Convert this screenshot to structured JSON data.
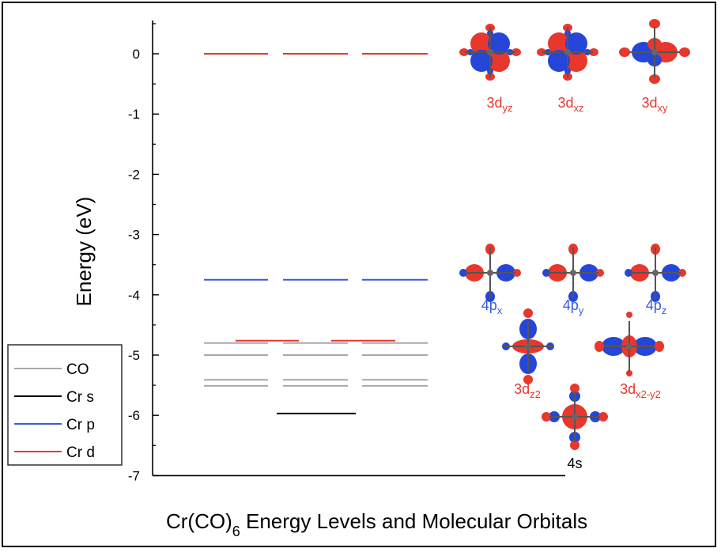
{
  "chart_data": {
    "type": "energy-level diagram",
    "title": "Cr(CO)6 Energy Levels and Molecular Orbitals",
    "title_parts": {
      "pre": "Cr(CO)",
      "sub": "6",
      "post": " Energy Levels and Molecular Orbitals"
    },
    "ylabel": "Energy (eV)",
    "ylim": [
      -7,
      0.5
    ],
    "yticks": [
      "0",
      "-1",
      "-2",
      "-3",
      "-4",
      "-5",
      "-6",
      "-7"
    ],
    "grid": false,
    "legend_position": "left-bottom",
    "series": [
      {
        "name": "CO",
        "color": "#a8a8a8",
        "levels": [
          {
            "column": 1,
            "energy": -4.8
          },
          {
            "column": 2,
            "energy": -4.8
          },
          {
            "column": 3,
            "energy": -4.8
          },
          {
            "column": 1,
            "energy": -5.0
          },
          {
            "column": 2,
            "energy": -5.0
          },
          {
            "column": 3,
            "energy": -5.0
          },
          {
            "column": 1,
            "energy": -5.41
          },
          {
            "column": 2,
            "energy": -5.41
          },
          {
            "column": 3,
            "energy": -5.41
          },
          {
            "column": 1,
            "energy": -5.51
          },
          {
            "column": 2,
            "energy": -5.51
          },
          {
            "column": 3,
            "energy": -5.51
          }
        ]
      },
      {
        "name": "Cr s",
        "color": "#000000",
        "levels": [
          {
            "column": 2,
            "energy": -5.97
          }
        ]
      },
      {
        "name": "Cr p",
        "color": "#3b5bdb",
        "levels": [
          {
            "column": 1,
            "energy": -3.75
          },
          {
            "column": 2,
            "energy": -3.75
          },
          {
            "column": 3,
            "energy": -3.75
          }
        ]
      },
      {
        "name": "Cr d",
        "color": "#e8372c",
        "levels": [
          {
            "column": 1,
            "energy": 0.0
          },
          {
            "column": 2,
            "energy": 0.0
          },
          {
            "column": 3,
            "energy": 0.0
          },
          {
            "column": 1.5,
            "energy": -4.76
          },
          {
            "column": 2.5,
            "energy": -4.76
          }
        ]
      }
    ],
    "orbitals": [
      {
        "label_main": "3d",
        "label_sub": "yz",
        "color": "#e8372c"
      },
      {
        "label_main": "3d",
        "label_sub": "xz",
        "color": "#e8372c"
      },
      {
        "label_main": "3d",
        "label_sub": "xy",
        "color": "#e8372c"
      },
      {
        "label_main": "4p",
        "label_sub": "x",
        "color": "#3b5bdb"
      },
      {
        "label_main": "4p",
        "label_sub": "y",
        "color": "#3b5bdb"
      },
      {
        "label_main": "4p",
        "label_sub": "z",
        "color": "#3b5bdb"
      },
      {
        "label_main": "3d",
        "label_sub": "z2",
        "color": "#e8372c"
      },
      {
        "label_main": "3d",
        "label_sub": "x2-y2",
        "color": "#e8372c"
      },
      {
        "label_main": "4s",
        "label_sub": "",
        "color": "#000000"
      }
    ]
  }
}
